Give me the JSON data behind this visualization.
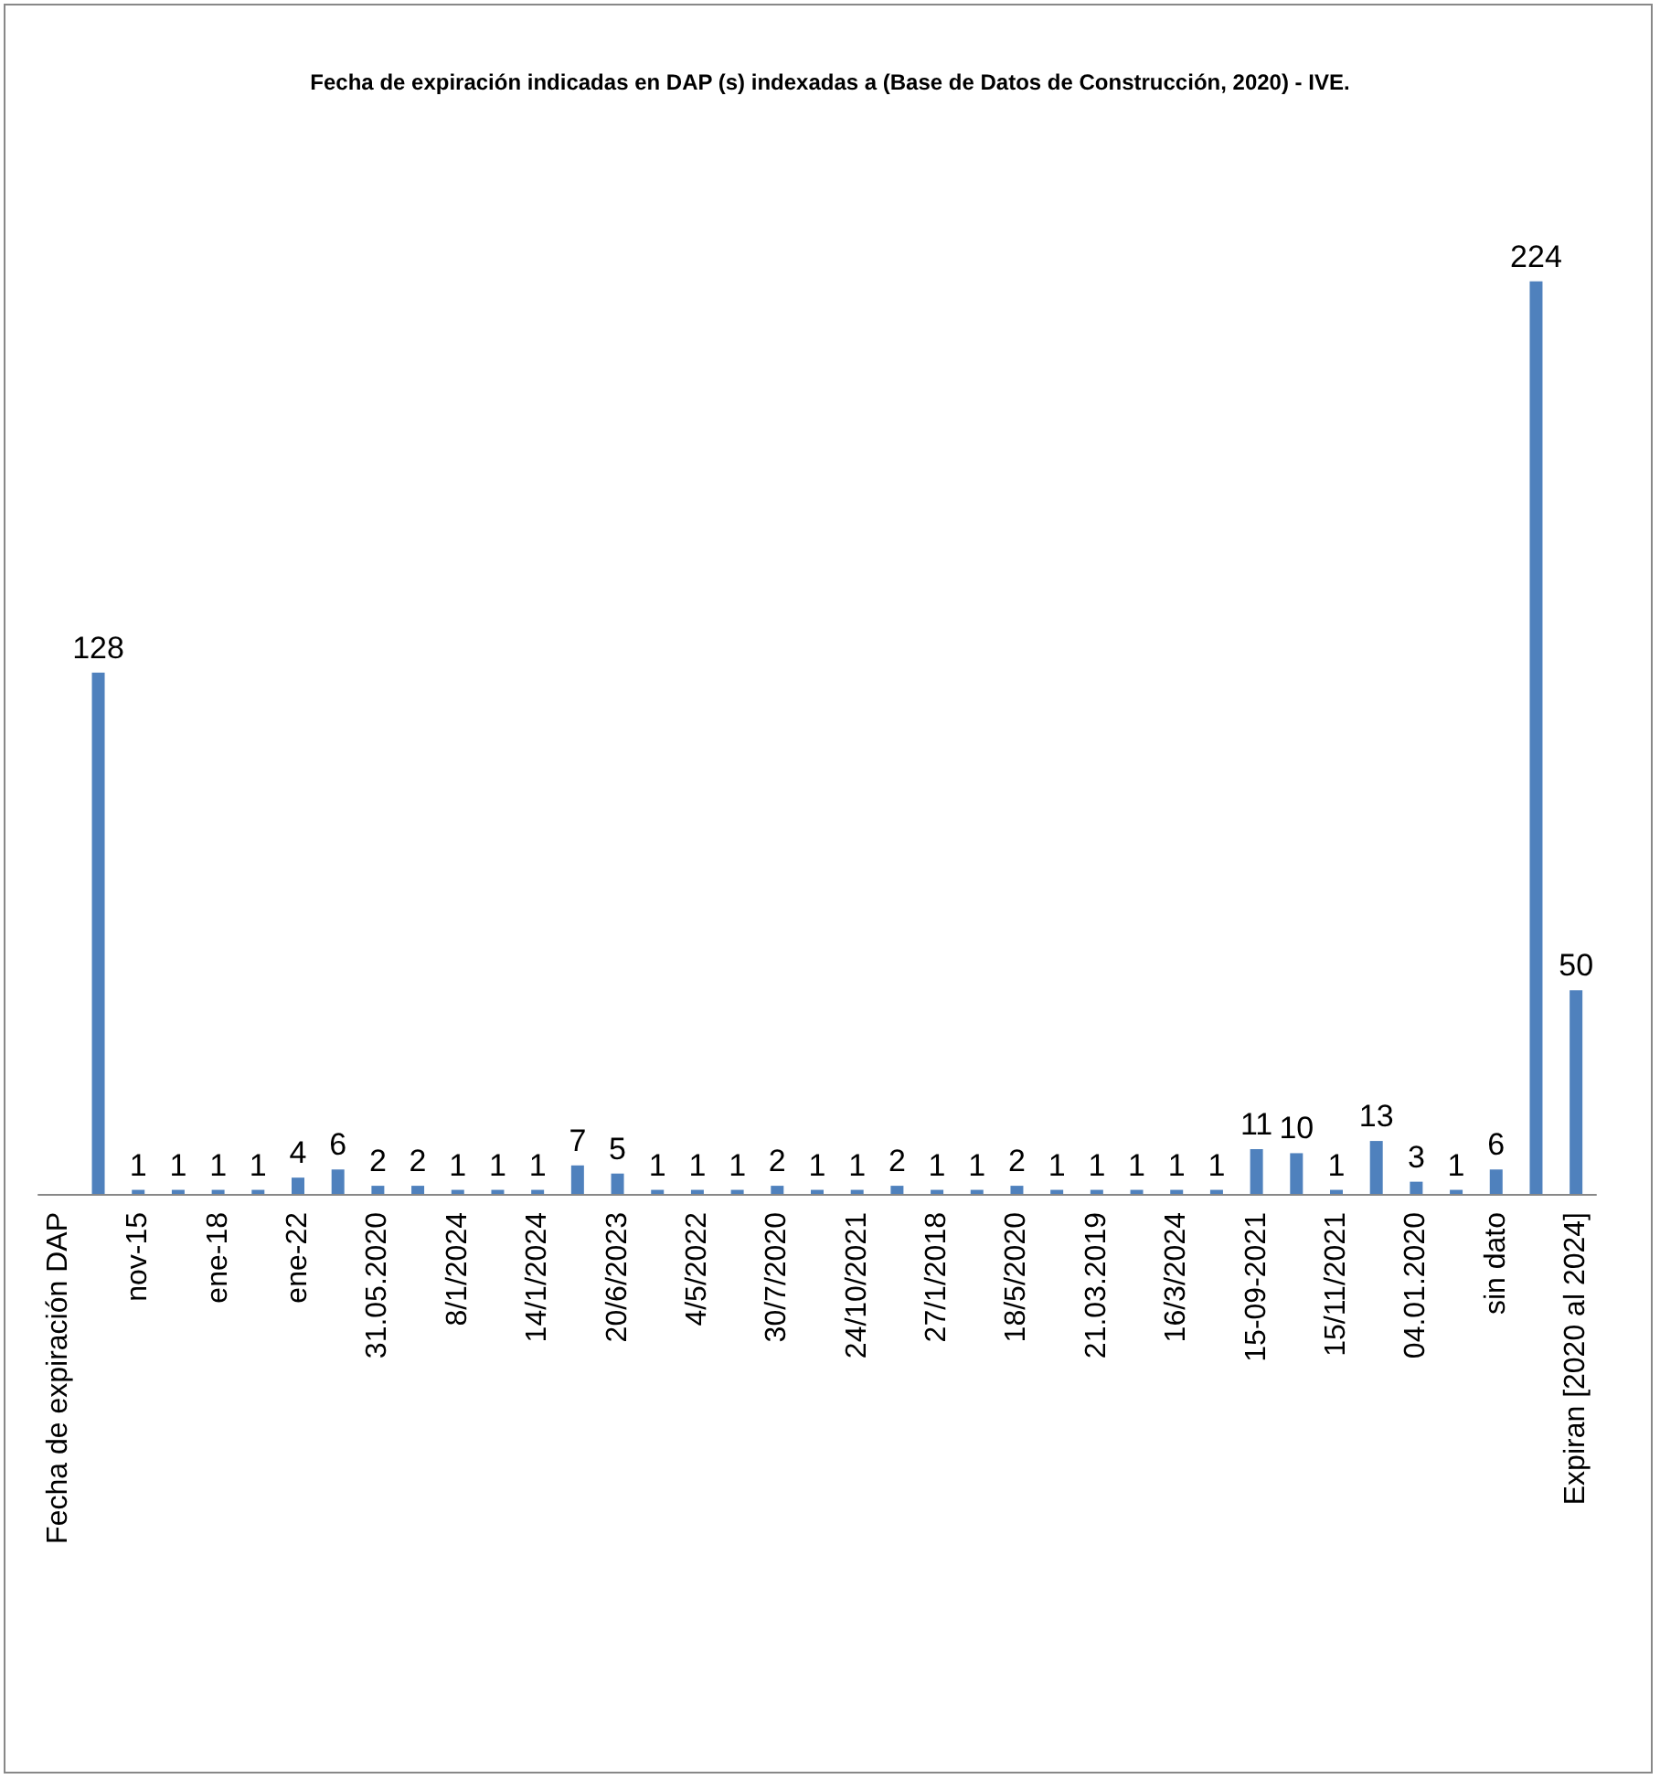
{
  "chart_data": {
    "type": "bar",
    "title": "Fecha de expiración indicadas en DAP (s) indexadas a (Base de Datos de Construcción, 2020) - IVE.",
    "categories": [
      "Fecha de expiración DAP",
      null,
      "nov-15",
      null,
      "ene-18",
      null,
      "ene-22",
      null,
      "31.05.2020",
      null,
      "8/1/2024",
      null,
      "14/1/2024",
      null,
      "20/6/2023",
      null,
      "4/5/2022",
      null,
      "30/7/2020",
      null,
      "24/10/2021",
      null,
      "27/1/2018",
      null,
      "18/5/2020",
      null,
      "21.03.2019",
      null,
      "16/3/2024",
      null,
      "15-09-2021",
      null,
      "15/11/2021",
      null,
      "04.01.2020",
      null,
      "sin dato",
      null,
      "Expiran [2020 al 2024]"
    ],
    "values": [
      null,
      128,
      1,
      1,
      1,
      1,
      4,
      6,
      2,
      2,
      1,
      1,
      1,
      7,
      5,
      1,
      1,
      1,
      2,
      1,
      1,
      2,
      1,
      1,
      2,
      1,
      1,
      1,
      1,
      1,
      11,
      10,
      1,
      13,
      3,
      1,
      6,
      224,
      50
    ],
    "color": "#4f81bd",
    "data_labels": true
  }
}
